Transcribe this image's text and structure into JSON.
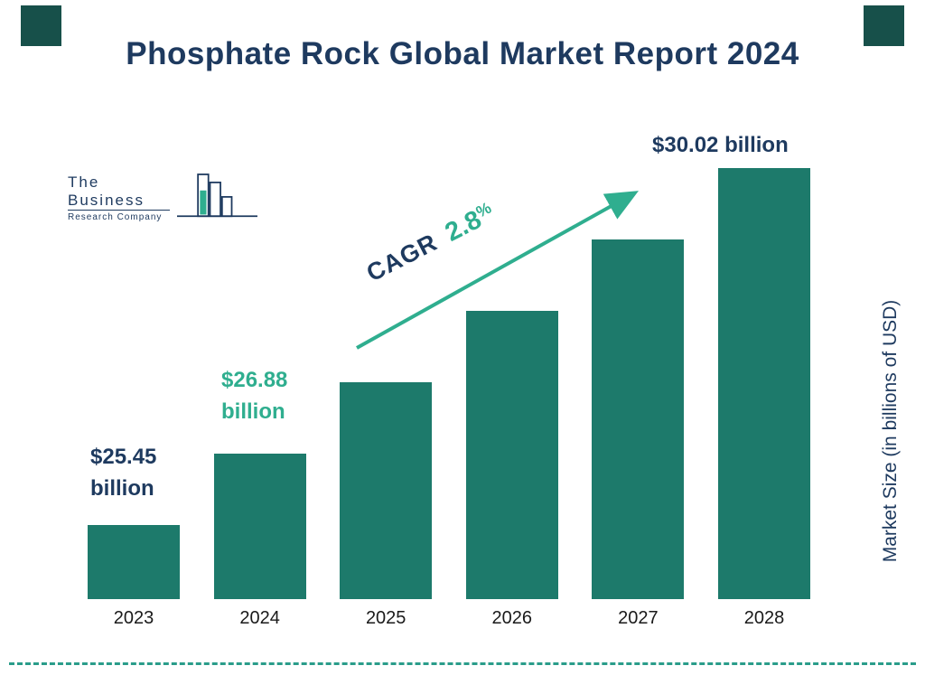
{
  "title": "Phosphate Rock Global Market Report 2024",
  "logo": {
    "line1": "The Business",
    "line2": "Research Company"
  },
  "y_axis_label": "Market Size (in billions of USD)",
  "cagr": {
    "prefix": "CAGR",
    "value": "2.8",
    "pct": "%"
  },
  "annotations": {
    "label_2023_line1": "$25.45",
    "label_2023_line2": "billion",
    "label_2024_line1": "$26.88",
    "label_2024_line2": "billion",
    "label_2028": "$30.02 billion"
  },
  "colors": {
    "bar": "#1d7a6b",
    "accent_green": "#2fae8f",
    "title_navy": "#1e3a5f",
    "corner_square": "#17504a"
  },
  "chart_data": {
    "type": "bar",
    "title": "Phosphate Rock Global Market Report 2024",
    "categories": [
      "2023",
      "2024",
      "2025",
      "2026",
      "2027",
      "2028"
    ],
    "values": [
      25.45,
      26.88,
      27.63,
      28.41,
      29.2,
      30.02
    ],
    "labeled_points": {
      "2023": "$25.45 billion",
      "2024": "$26.88 billion",
      "2028": "$30.02 billion"
    },
    "cagr": "2.8%",
    "xlabel": "",
    "ylabel": "Market Size (in billions of USD)",
    "grid": false,
    "legend": false,
    "bar_color": "#1d7a6b"
  }
}
